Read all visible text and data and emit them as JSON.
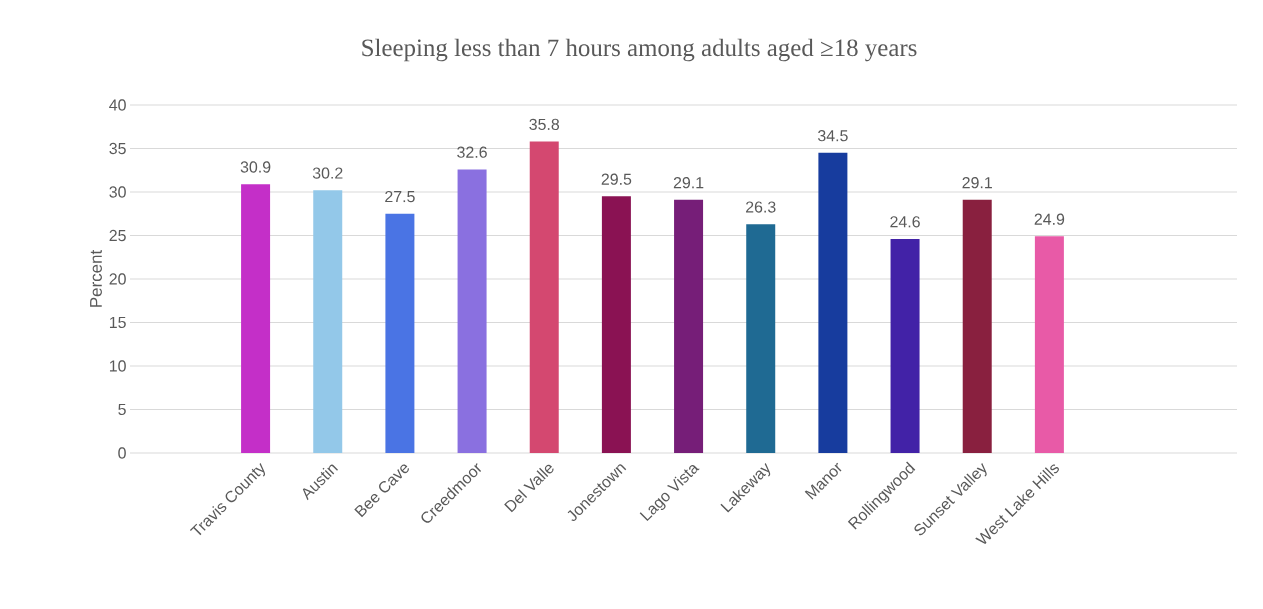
{
  "chart_data": {
    "type": "bar",
    "title": "Sleeping less than 7 hours among adults aged ≥18 years",
    "ylabel": "Percent",
    "categories": [
      "Travis County",
      "Austin",
      "Bee Cave",
      "Creedmoor",
      "Del Valle",
      "Jonestown",
      "Lago Vista",
      "Lakeway",
      "Manor",
      "Rollingwood",
      "Sunset Valley",
      "West Lake Hills"
    ],
    "values": [
      30.9,
      30.2,
      27.5,
      32.6,
      35.8,
      29.5,
      29.1,
      26.3,
      34.5,
      24.6,
      29.1,
      24.9
    ],
    "colors": [
      "#c42fc8",
      "#93c8e9",
      "#4a74e4",
      "#8a70e0",
      "#d44870",
      "#8a1253",
      "#761e78",
      "#1f6a93",
      "#173c9e",
      "#4222a7",
      "#89203f",
      "#e85aa7"
    ],
    "ylim": [
      0,
      40
    ],
    "yticks": [
      0,
      5,
      10,
      15,
      20,
      25,
      30,
      35,
      40
    ],
    "grid": "y",
    "data_labels": true
  }
}
